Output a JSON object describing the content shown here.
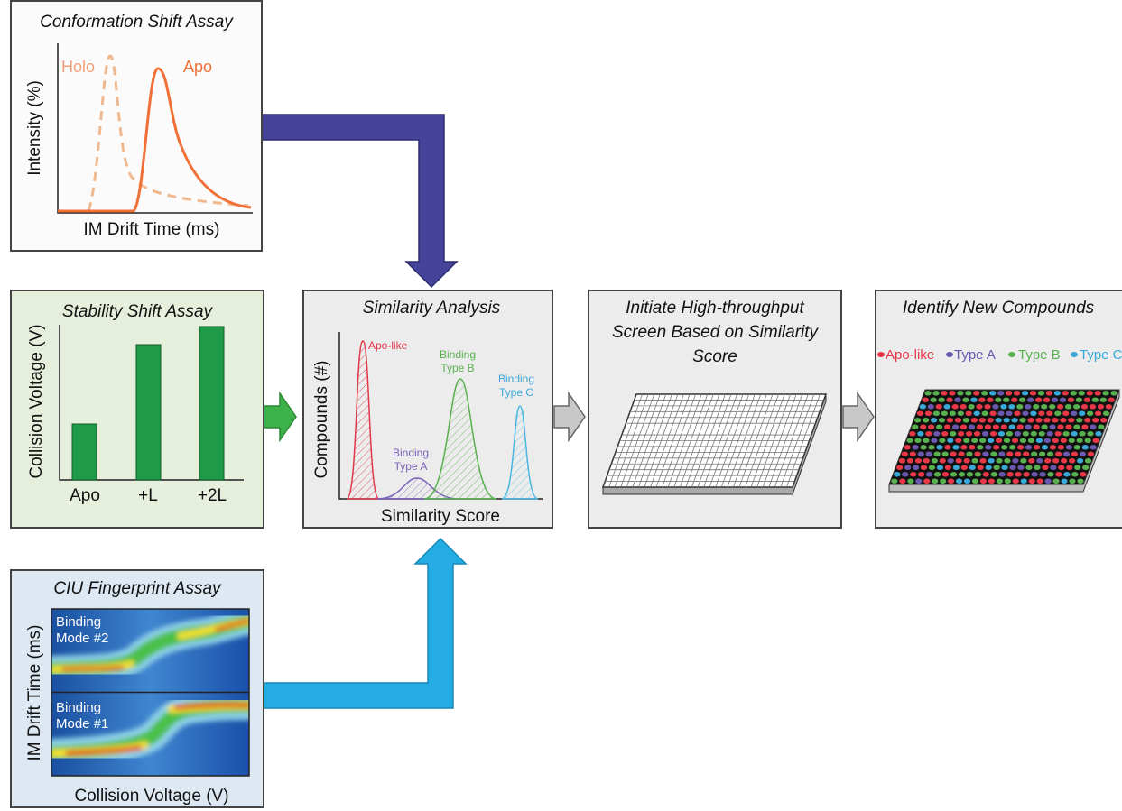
{
  "conformation": {
    "title": "Conformation Shift Assay",
    "y_label": "Intensity (%)",
    "x_label": "IM Drift Time (ms)",
    "holo": "Holo",
    "apo": "Apo"
  },
  "stability": {
    "title": "Stability Shift Assay",
    "y_label": "Collision Voltage (V)",
    "categories": [
      "Apo",
      "+L",
      "+2L"
    ]
  },
  "similarity": {
    "title": "Similarity Analysis",
    "y_label": "Compounds (#)",
    "x_label": "Similarity Score",
    "apo_like": "Apo-like",
    "type_a": [
      "Binding",
      "Type A"
    ],
    "type_b": [
      "Binding",
      "Type B"
    ],
    "type_c": [
      "Binding",
      "Type C"
    ]
  },
  "screen": {
    "title": [
      "Initiate High-throughput",
      "Screen Based on Similarity",
      "Score"
    ]
  },
  "identify": {
    "title": "Identify New Compounds",
    "legend": [
      "Apo-like",
      "Type A",
      "Type B",
      "Type C"
    ]
  },
  "ciu": {
    "title": "CIU Fingerprint Assay",
    "y_label": "IM Drift Time (ms)",
    "x_label": "Collision Voltage (V)",
    "mode_2": [
      "Binding",
      "Mode #2"
    ],
    "mode_1": [
      "Binding",
      "Mode #1"
    ]
  }
}
